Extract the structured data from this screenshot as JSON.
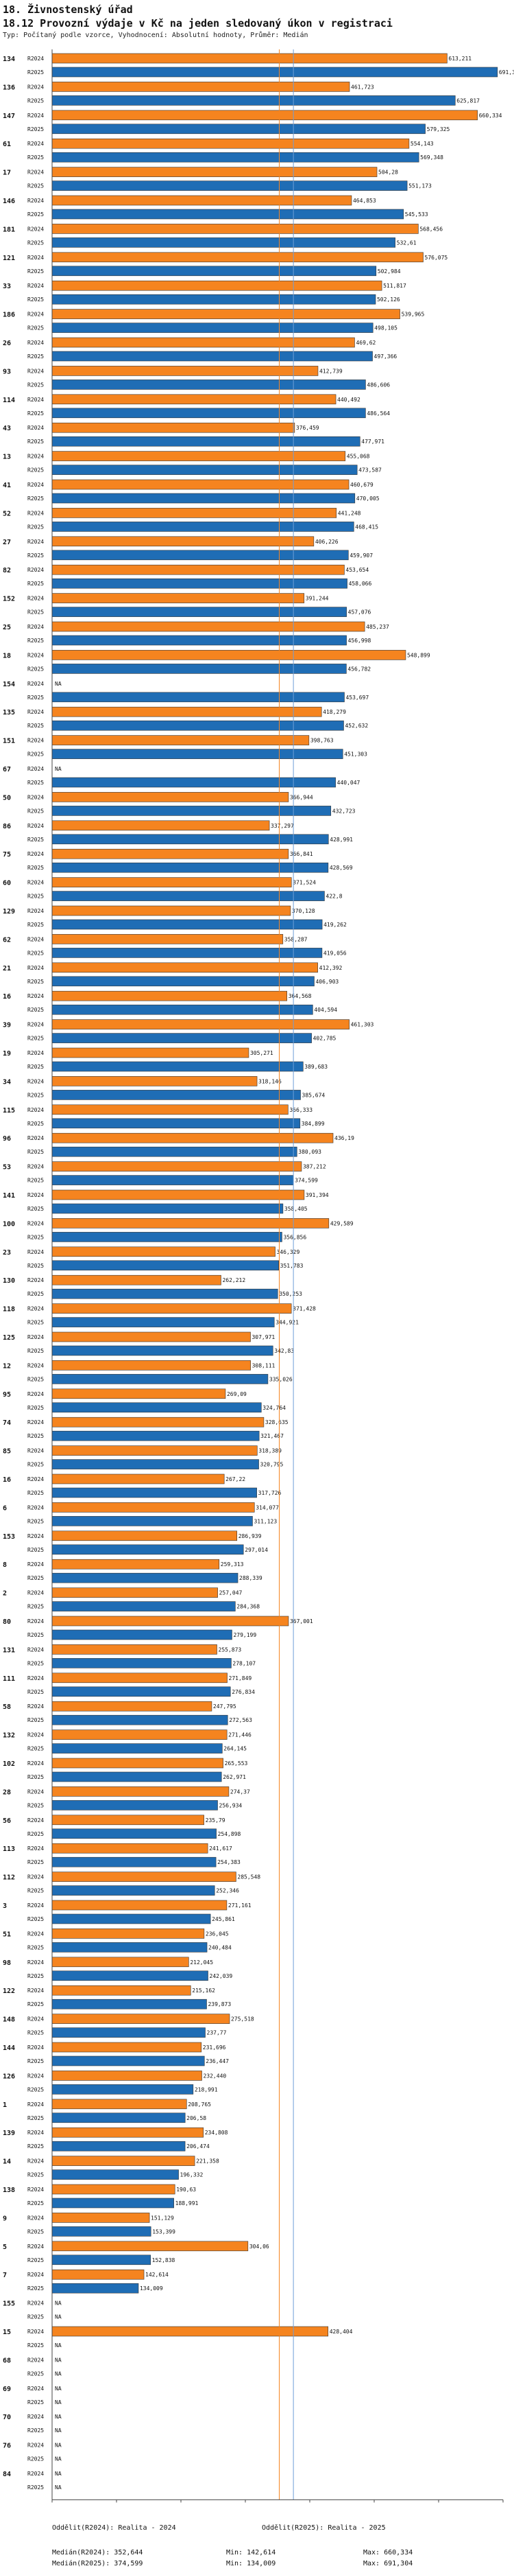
{
  "header": {
    "title": "18. Živnostenský úřad",
    "subtitle": "18.12 Provozní výdaje v Kč na jeden sledovaný úkon v registraci",
    "note": "Typ: Počítaný podle vzorce, Vyhodnocení: Absolutní hodnoty, Průměr: Medián"
  },
  "colors": {
    "r2024": "#f5841f",
    "r2025": "#1f6db5",
    "median2024": "#f5841f",
    "median2025": "#6f9fd8",
    "axis": "#444444"
  },
  "chart_data": {
    "type": "bar",
    "orientation": "horizontal",
    "title": "18.12 Provozní výdaje v Kč na jeden sledovaný úkon v registraci",
    "xlim": [
      0,
      700000
    ],
    "na_label": "NA",
    "series": [
      {
        "name": "R2024",
        "label": "R2024"
      },
      {
        "name": "R2025",
        "label": "R2025"
      }
    ],
    "groups": [
      {
        "id": "134",
        "r2024": 613211,
        "r2024_label": "613,211",
        "r2025": 691304,
        "r2025_label": "691,304"
      },
      {
        "id": "136",
        "r2024": 461723,
        "r2024_label": "461,723",
        "r2025": 625817,
        "r2025_label": "625,817"
      },
      {
        "id": "147",
        "r2024": 660334,
        "r2024_label": "660,334",
        "r2025": 579325,
        "r2025_label": "579,325"
      },
      {
        "id": "61",
        "r2024": 554143,
        "r2024_label": "554,143",
        "r2025": 569348,
        "r2025_label": "569,348"
      },
      {
        "id": "17",
        "r2024": 504280,
        "r2024_label": "504,28",
        "r2025": 551173,
        "r2025_label": "551,173"
      },
      {
        "id": "146",
        "r2024": 464853,
        "r2024_label": "464,853",
        "r2025": 545533,
        "r2025_label": "545,533"
      },
      {
        "id": "181",
        "r2024": 568456,
        "r2024_label": "568,456",
        "r2025": 532610,
        "r2025_label": "532,61"
      },
      {
        "id": "121",
        "r2024": 576075,
        "r2024_label": "576,075",
        "r2025": 502984,
        "r2025_label": "502,984"
      },
      {
        "id": "33",
        "r2024": 511817,
        "r2024_label": "511,817",
        "r2025": 502126,
        "r2025_label": "502,126"
      },
      {
        "id": "186",
        "r2024": 539965,
        "r2024_label": "539,965",
        "r2025": 498105,
        "r2025_label": "498,105"
      },
      {
        "id": "26",
        "r2024": 469620,
        "r2024_label": "469,62",
        "r2025": 497366,
        "r2025_label": "497,366"
      },
      {
        "id": "93",
        "r2024": 412739,
        "r2024_label": "412,739",
        "r2025": 486606,
        "r2025_label": "486,606"
      },
      {
        "id": "114",
        "r2024": 440492,
        "r2024_label": "440,492",
        "r2025": 486564,
        "r2025_label": "486,564"
      },
      {
        "id": "43",
        "r2024": 376459,
        "r2024_label": "376,459",
        "r2025": 477971,
        "r2025_label": "477,971"
      },
      {
        "id": "13",
        "r2024": 455068,
        "r2024_label": "455,068",
        "r2025": 473587,
        "r2025_label": "473,587"
      },
      {
        "id": "41",
        "r2024": 460679,
        "r2024_label": "460,679",
        "r2025": 470005,
        "r2025_label": "470,005"
      },
      {
        "id": "52",
        "r2024": 441248,
        "r2024_label": "441,248",
        "r2025": 468415,
        "r2025_label": "468,415"
      },
      {
        "id": "27",
        "r2024": 406226,
        "r2024_label": "406,226",
        "r2025": 459907,
        "r2025_label": "459,907"
      },
      {
        "id": "82",
        "r2024": 453654,
        "r2024_label": "453,654",
        "r2025": 458066,
        "r2025_label": "458,066"
      },
      {
        "id": "152",
        "r2024": 391244,
        "r2024_label": "391,244",
        "r2025": 457076,
        "r2025_label": "457,076"
      },
      {
        "id": "25",
        "r2024": 485237,
        "r2024_label": "485,237",
        "r2025": 456998,
        "r2025_label": "456,998"
      },
      {
        "id": "18",
        "r2024": 548899,
        "r2024_label": "548,899",
        "r2025": 456782,
        "r2025_label": "456,782"
      },
      {
        "id": "154",
        "r2024": null,
        "r2024_label": "NA",
        "r2025": 453697,
        "r2025_label": "453,697"
      },
      {
        "id": "135",
        "r2024": 418279,
        "r2024_label": "418,279",
        "r2025": 452632,
        "r2025_label": "452,632"
      },
      {
        "id": "151",
        "r2024": 398763,
        "r2024_label": "398,763",
        "r2025": 451303,
        "r2025_label": "451,303"
      },
      {
        "id": "67",
        "r2024": null,
        "r2024_label": "NA",
        "r2025": 440047,
        "r2025_label": "440,047"
      },
      {
        "id": "50",
        "r2024": 366944,
        "r2024_label": "366,944",
        "r2025": 432723,
        "r2025_label": "432,723"
      },
      {
        "id": "86",
        "r2024": 337297,
        "r2024_label": "337,297",
        "r2025": 428991,
        "r2025_label": "428,991"
      },
      {
        "id": "75",
        "r2024": 366841,
        "r2024_label": "366,841",
        "r2025": 428569,
        "r2025_label": "428,569"
      },
      {
        "id": "60",
        "r2024": 371524,
        "r2024_label": "371,524",
        "r2025": 422800,
        "r2025_label": "422,8"
      },
      {
        "id": "129",
        "r2024": 370128,
        "r2024_label": "370,128",
        "r2025": 419262,
        "r2025_label": "419,262"
      },
      {
        "id": "62",
        "r2024": 358287,
        "r2024_label": "358,287",
        "r2025": 419056,
        "r2025_label": "419,056"
      },
      {
        "id": "21",
        "r2024": 412392,
        "r2024_label": "412,392",
        "r2025": 406903,
        "r2025_label": "406,903"
      },
      {
        "id": "16",
        "r2024": 364568,
        "r2024_label": "364,568",
        "r2025": 404594,
        "r2025_label": "404,594"
      },
      {
        "id": "39",
        "r2024": 461303,
        "r2024_label": "461,303",
        "r2025": 402785,
        "r2025_label": "402,785"
      },
      {
        "id": "19",
        "r2024": 305271,
        "r2024_label": "305,271",
        "r2025": 389683,
        "r2025_label": "389,683"
      },
      {
        "id": "34",
        "r2024": 318146,
        "r2024_label": "318,146",
        "r2025": 385674,
        "r2025_label": "385,674"
      },
      {
        "id": "115",
        "r2024": 366333,
        "r2024_label": "366,333",
        "r2025": 384899,
        "r2025_label": "384,899"
      },
      {
        "id": "96",
        "r2024": 436190,
        "r2024_label": "436,19",
        "r2025": 380093,
        "r2025_label": "380,093"
      },
      {
        "id": "53",
        "r2024": 387212,
        "r2024_label": "387,212",
        "r2025": 374599,
        "r2025_label": "374,599"
      },
      {
        "id": "141",
        "r2024": 391394,
        "r2024_label": "391,394",
        "r2025": 358405,
        "r2025_label": "358,405"
      },
      {
        "id": "100",
        "r2024": 429589,
        "r2024_label": "429,589",
        "r2025": 356856,
        "r2025_label": "356,856"
      },
      {
        "id": "23",
        "r2024": 346329,
        "r2024_label": "346,329",
        "r2025": 351783,
        "r2025_label": "351,783"
      },
      {
        "id": "130",
        "r2024": 262212,
        "r2024_label": "262,212",
        "r2025": 350253,
        "r2025_label": "350,253"
      },
      {
        "id": "118",
        "r2024": 371428,
        "r2024_label": "371,428",
        "r2025": 344921,
        "r2025_label": "344,921"
      },
      {
        "id": "125",
        "r2024": 307971,
        "r2024_label": "307,971",
        "r2025": 342830,
        "r2025_label": "342,83"
      },
      {
        "id": "12",
        "r2024": 308111,
        "r2024_label": "308,111",
        "r2025": 335026,
        "r2025_label": "335,026"
      },
      {
        "id": "95",
        "r2024": 269090,
        "r2024_label": "269,09",
        "r2025": 324764,
        "r2025_label": "324,764"
      },
      {
        "id": "74",
        "r2024": 328635,
        "r2024_label": "328,635",
        "r2025": 321467,
        "r2025_label": "321,467"
      },
      {
        "id": "85",
        "r2024": 318389,
        "r2024_label": "318,389",
        "r2025": 320795,
        "r2025_label": "320,795"
      },
      {
        "id": "16",
        "r2024": 267220,
        "r2024_label": "267,22",
        "r2025": 317726,
        "r2025_label": "317,726"
      },
      {
        "id": "6",
        "r2024": 314077,
        "r2024_label": "314,077",
        "r2025": 311123,
        "r2025_label": "311,123"
      },
      {
        "id": "153",
        "r2024": 286939,
        "r2024_label": "286,939",
        "r2025": 297014,
        "r2025_label": "297,014"
      },
      {
        "id": "8",
        "r2024": 259313,
        "r2024_label": "259,313",
        "r2025": 288339,
        "r2025_label": "288,339"
      },
      {
        "id": "2",
        "r2024": 257047,
        "r2024_label": "257,047",
        "r2025": 284368,
        "r2025_label": "284,368"
      },
      {
        "id": "80",
        "r2024": 367001,
        "r2024_label": "367,001",
        "r2025": 279199,
        "r2025_label": "279,199"
      },
      {
        "id": "131",
        "r2024": 255873,
        "r2024_label": "255,873",
        "r2025": 278107,
        "r2025_label": "278,107"
      },
      {
        "id": "111",
        "r2024": 271849,
        "r2024_label": "271,849",
        "r2025": 276834,
        "r2025_label": "276,834"
      },
      {
        "id": "58",
        "r2024": 247795,
        "r2024_label": "247,795",
        "r2025": 272563,
        "r2025_label": "272,563"
      },
      {
        "id": "132",
        "r2024": 271446,
        "r2024_label": "271,446",
        "r2025": 264145,
        "r2025_label": "264,145"
      },
      {
        "id": "102",
        "r2024": 265553,
        "r2024_label": "265,553",
        "r2025": 262971,
        "r2025_label": "262,971"
      },
      {
        "id": "28",
        "r2024": 274370,
        "r2024_label": "274,37",
        "r2025": 256934,
        "r2025_label": "256,934"
      },
      {
        "id": "56",
        "r2024": 235790,
        "r2024_label": "235,79",
        "r2025": 254898,
        "r2025_label": "254,898"
      },
      {
        "id": "113",
        "r2024": 241617,
        "r2024_label": "241,617",
        "r2025": 254383,
        "r2025_label": "254,383"
      },
      {
        "id": "112",
        "r2024": 285548,
        "r2024_label": "285,548",
        "r2025": 252346,
        "r2025_label": "252,346"
      },
      {
        "id": "3",
        "r2024": 271161,
        "r2024_label": "271,161",
        "r2025": 245861,
        "r2025_label": "245,861"
      },
      {
        "id": "51",
        "r2024": 236045,
        "r2024_label": "236,045",
        "r2025": 240484,
        "r2025_label": "240,484"
      },
      {
        "id": "98",
        "r2024": 212045,
        "r2024_label": "212,045",
        "r2025": 242039,
        "r2025_label": "242,039"
      },
      {
        "id": "122",
        "r2024": 215162,
        "r2024_label": "215,162",
        "r2025": 239873,
        "r2025_label": "239,873"
      },
      {
        "id": "148",
        "r2024": 275518,
        "r2024_label": "275,518",
        "r2025": 237770,
        "r2025_label": "237,77"
      },
      {
        "id": "144",
        "r2024": 231696,
        "r2024_label": "231,696",
        "r2025": 236447,
        "r2025_label": "236,447"
      },
      {
        "id": "126",
        "r2024": 232440,
        "r2024_label": "232,440",
        "r2025": 218991,
        "r2025_label": "218,991"
      },
      {
        "id": "1",
        "r2024": 208765,
        "r2024_label": "208,765",
        "r2025": 206580,
        "r2025_label": "206,58"
      },
      {
        "id": "139",
        "r2024": 234808,
        "r2024_label": "234,808",
        "r2025": 206474,
        "r2025_label": "206,474"
      },
      {
        "id": "14",
        "r2024": 221358,
        "r2024_label": "221,358",
        "r2025": 196332,
        "r2025_label": "196,332"
      },
      {
        "id": "138",
        "r2024": 190630,
        "r2024_label": "190,63",
        "r2025": 188991,
        "r2025_label": "188,991"
      },
      {
        "id": "9",
        "r2024": 151129,
        "r2024_label": "151,129",
        "r2025": 153399,
        "r2025_label": "153,399"
      },
      {
        "id": "5",
        "r2024": 304060,
        "r2024_label": "304,06",
        "r2025": 152838,
        "r2025_label": "152,838"
      },
      {
        "id": "7",
        "r2024": 142614,
        "r2024_label": "142,614",
        "r2025": 134009,
        "r2025_label": "134,009"
      },
      {
        "id": "155",
        "r2024": null,
        "r2024_label": "NA",
        "r2025": null,
        "r2025_label": "NA"
      },
      {
        "id": "15",
        "r2024": 428404,
        "r2024_label": "428,404",
        "r2025": null,
        "r2025_label": "NA"
      },
      {
        "id": "68",
        "r2024": null,
        "r2024_label": "NA",
        "r2025": null,
        "r2025_label": "NA"
      },
      {
        "id": "69",
        "r2024": null,
        "r2024_label": "NA",
        "r2025": null,
        "r2025_label": "NA"
      },
      {
        "id": "70",
        "r2024": null,
        "r2024_label": "NA",
        "r2025": null,
        "r2025_label": "NA"
      },
      {
        "id": "76",
        "r2024": null,
        "r2024_label": "NA",
        "r2025": null,
        "r2025_label": "NA"
      },
      {
        "id": "84",
        "r2024": null,
        "r2024_label": "NA",
        "r2025": null,
        "r2025_label": "NA"
      }
    ],
    "median_2024": 352644,
    "median_2025": 374599
  },
  "footer": {
    "legend_2024": "Oddělit(R2024): Realita - 2024",
    "legend_2025": "Oddělit(R2025): Realita - 2025",
    "median_2024": "Medián(R2024): 352,644",
    "median_2025": "Medián(R2025): 374,599",
    "min_2024": "Min: 142,614",
    "min_2025": "Min: 134,009",
    "max_2024": "Max: 660,334",
    "max_2025": "Max: 691,304"
  }
}
